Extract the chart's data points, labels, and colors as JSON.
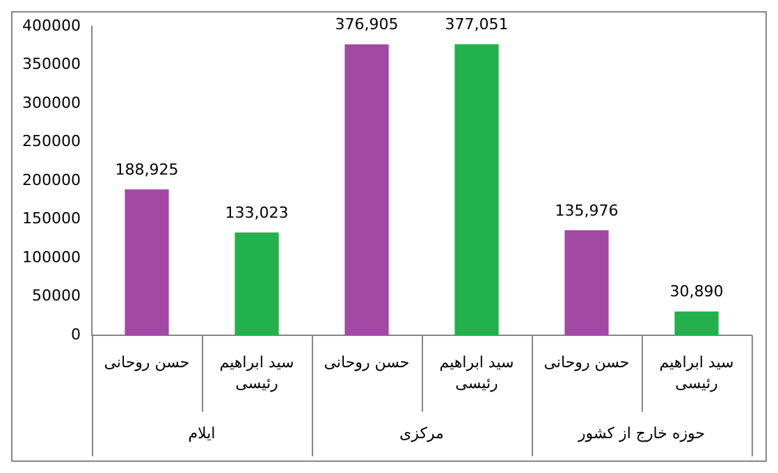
{
  "chart_data": {
    "type": "bar",
    "categories": [
      "حسن روحانی",
      "سید ابراهیم رئیسی",
      "حسن روحانی",
      "سید ابراهیم رئیسی",
      "حسن روحانی",
      "سید ابراهیم رئیسی"
    ],
    "values": [
      188925,
      133023,
      376905,
      377051,
      135976,
      30890
    ],
    "colors": [
      "#a349a4",
      "#22b14c",
      "#a349a4",
      "#22b14c",
      "#a349a4",
      "#22b14c"
    ],
    "value_labels": [
      "188,925",
      "133,023",
      "376,905",
      "377,051",
      "135,976",
      "30,890"
    ],
    "annotations": [
      "ایلام",
      "مرکزی",
      "حوزه خارج از کشور"
    ],
    "ylim": [
      0,
      400000
    ],
    "yticks": [
      0,
      50000,
      100000,
      150000,
      200000,
      250000,
      300000,
      350000,
      400000
    ],
    "grid": false,
    "legend": false
  }
}
